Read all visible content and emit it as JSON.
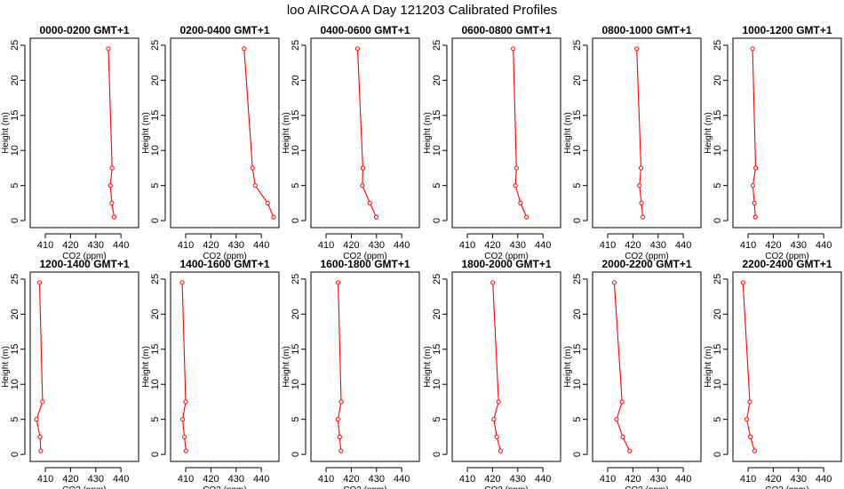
{
  "title": "loo AIRCOA A  Day 121203  Calibrated Profiles",
  "colors": {
    "profile": "#ff0000",
    "axes": "#000000",
    "background": "#ffffff"
  },
  "chart_data": {
    "type": "line",
    "layout": "2 rows x 6 panels",
    "xlabel": "CO2 (ppm)",
    "ylabel": "Height (m)",
    "xlim": [
      404,
      447
    ],
    "ylim": [
      -1,
      26
    ],
    "xticks": [
      410,
      420,
      430,
      440
    ],
    "yticks": [
      0,
      5,
      10,
      15,
      20,
      25
    ],
    "grid": false,
    "heights": [
      0.5,
      2.5,
      5,
      7.5,
      24.5
    ],
    "panels": [
      {
        "title": "0000-0200 GMT+1",
        "co2": [
          437.3,
          436.4,
          435.8,
          436.5,
          435.0
        ]
      },
      {
        "title": "0200-0400 GMT+1",
        "co2": [
          444.9,
          442.5,
          437.6,
          436.5,
          433.2
        ]
      },
      {
        "title": "0400-0600 GMT+1",
        "co2": [
          429.9,
          427.4,
          424.4,
          424.6,
          422.5
        ]
      },
      {
        "title": "0600-0800 GMT+1",
        "co2": [
          433.5,
          431.1,
          429.1,
          429.5,
          428.2
        ]
      },
      {
        "title": "0800-1000 GMT+1",
        "co2": [
          423.9,
          423.4,
          422.6,
          423.2,
          421.5
        ]
      },
      {
        "title": "1000-1200 GMT+1",
        "co2": [
          412.9,
          412.5,
          411.9,
          413.0,
          411.8
        ]
      },
      {
        "title": "1200-1400 GMT+1",
        "co2": [
          408.2,
          407.9,
          406.5,
          408.9,
          407.7
        ]
      },
      {
        "title": "1400-1600 GMT+1",
        "co2": [
          410.1,
          409.5,
          408.8,
          410.0,
          408.6
        ]
      },
      {
        "title": "1600-1800 GMT+1",
        "co2": [
          415.9,
          415.4,
          414.7,
          416.0,
          414.8
        ]
      },
      {
        "title": "1800-2000 GMT+1",
        "co2": [
          423.2,
          421.7,
          420.5,
          422.4,
          420.1
        ]
      },
      {
        "title": "2000-2200 GMT+1",
        "co2": [
          418.7,
          416.0,
          413.5,
          415.7,
          412.6
        ]
      },
      {
        "title": "2200-2400 GMT+1",
        "co2": [
          412.6,
          410.9,
          409.5,
          410.7,
          408.0
        ]
      }
    ]
  }
}
